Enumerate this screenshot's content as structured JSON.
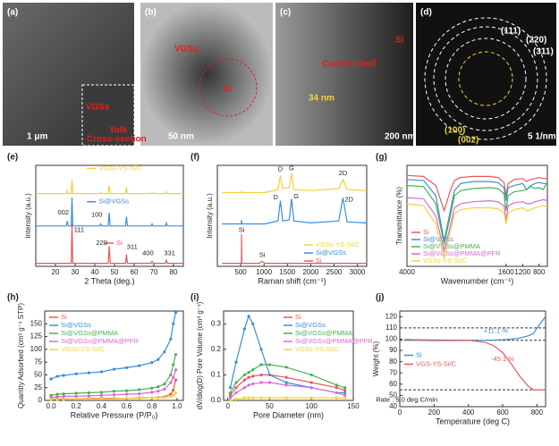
{
  "panels": [
    {
      "label": "(a)",
      "texts": [
        "VGSs",
        "Yolk",
        "Cross-section",
        "1 μm"
      ]
    },
    {
      "label": "(b)",
      "texts": [
        "VGSs",
        "Si",
        "50 nm"
      ]
    },
    {
      "label": "(c)",
      "texts": [
        "Carbon shell",
        "Si",
        "34 nm",
        "200 nm"
      ]
    },
    {
      "label": "(d)",
      "texts": [
        "(111)",
        "(220)",
        "(311)",
        "(100)",
        "(002)",
        "5 1/nm"
      ]
    }
  ],
  "chart_data": [
    {
      "type": "line",
      "panel_label": "(e)",
      "x_label": "2 Theta (deg.)",
      "y_label": "Intensity (a.u.)",
      "legend": "inline",
      "xlim": [
        10,
        85
      ],
      "ylim": [
        0,
        10
      ],
      "xticks": [
        20,
        30,
        40,
        50,
        60,
        70,
        80
      ],
      "x": [
        10,
        20,
        25.5,
        26,
        26.5,
        28,
        28.4,
        28.8,
        35,
        42.5,
        43,
        43.5,
        46.8,
        47.3,
        47.8,
        55.6,
        56.1,
        56.6,
        68.6,
        69.1,
        69.6,
        75.9,
        76.4,
        76.9,
        85
      ],
      "series": [
        {
          "name": "VGSs-YS-Si/C",
          "color": "#f2d23c",
          "values": [
            7.2,
            7.2,
            7.2,
            7.5,
            7.2,
            7.2,
            8.6,
            7.2,
            7.2,
            7.2,
            7.3,
            7.2,
            7.2,
            8.0,
            7.2,
            7.2,
            7.8,
            7.2,
            7.2,
            7.3,
            7.2,
            7.2,
            7.4,
            7.2,
            7.2
          ]
        },
        {
          "name": "Si@VGSs",
          "color": "#3a8fd6",
          "values": [
            4.0,
            4.0,
            4.0,
            4.5,
            4.0,
            4.0,
            6.8,
            4.0,
            4.0,
            4.0,
            4.2,
            4.0,
            4.0,
            5.3,
            4.0,
            4.0,
            4.9,
            4.0,
            4.0,
            4.2,
            4.0,
            4.0,
            4.3,
            4.0,
            4.0
          ]
        },
        {
          "name": "Si",
          "color": "#e8585a",
          "values": [
            0.3,
            0.3,
            0.3,
            0.3,
            0.3,
            0.3,
            4.2,
            0.3,
            0.3,
            0.3,
            0.3,
            0.3,
            0.3,
            2.0,
            0.3,
            0.3,
            1.2,
            0.3,
            0.3,
            0.5,
            0.3,
            0.3,
            0.6,
            0.3,
            0.3
          ]
        }
      ],
      "annotations": [
        "002",
        "100",
        "111",
        "220",
        "311",
        "400",
        "331"
      ]
    },
    {
      "type": "line",
      "panel_label": "(f)",
      "x_label": "Raman shift (cm⁻¹)",
      "y_label": "Intensity (a.u.)",
      "legend": "lower right",
      "xlim": [
        0,
        3200
      ],
      "ylim": [
        0,
        10
      ],
      "xticks": [
        500,
        1000,
        1500,
        2000,
        2500,
        3000
      ],
      "x": [
        100,
        500,
        515,
        520,
        525,
        900,
        960,
        1020,
        1300,
        1350,
        1400,
        1540,
        1590,
        1640,
        2000,
        2600,
        2690,
        2780,
        3200
      ],
      "series": [
        {
          "name": "VGSs-YS-Si/C",
          "color": "#f2d23c",
          "values": [
            7.3,
            7.3,
            7.3,
            7.5,
            7.3,
            7.3,
            7.3,
            7.3,
            7.6,
            9.0,
            7.7,
            7.8,
            9.2,
            7.6,
            7.5,
            7.7,
            8.6,
            7.6,
            7.5
          ]
        },
        {
          "name": "Si@VGSs",
          "color": "#3a8fd6",
          "values": [
            4.2,
            4.2,
            4.2,
            4.6,
            4.2,
            4.2,
            4.2,
            4.2,
            4.5,
            6.5,
            4.5,
            4.6,
            6.7,
            4.5,
            4.3,
            4.5,
            6.8,
            4.4,
            4.3
          ]
        },
        {
          "name": "Si",
          "color": "#e8585a",
          "values": [
            0.3,
            0.3,
            0.3,
            3.2,
            0.3,
            0.3,
            0.5,
            0.3,
            0.3,
            0.3,
            0.3,
            0.3,
            0.3,
            0.3,
            0.3,
            0.3,
            0.3,
            0.3,
            0.3
          ]
        }
      ],
      "annotations": [
        "D",
        "G",
        "2D",
        "D",
        "G",
        "2D",
        "Si",
        "Si"
      ]
    },
    {
      "type": "line",
      "panel_label": "(g)",
      "x_label": "Wavenumber (cm⁻¹)",
      "y_label": "Transmittance (%)",
      "legend": "lower left",
      "xlim": [
        4000,
        600
      ],
      "ylim": [
        0,
        10
      ],
      "xticks": [
        4000,
        1600,
        1200,
        800
      ],
      "x": [
        4000,
        3600,
        3300,
        3100,
        2950,
        2850,
        2700,
        2400,
        2000,
        1800,
        1650,
        1600,
        1550,
        1400,
        1200,
        1100,
        1000,
        900,
        800,
        700,
        600
      ],
      "series": [
        {
          "name": "Si",
          "color": "#e8585a",
          "values": [
            9.0,
            8.9,
            8.0,
            5.5,
            7.5,
            8.5,
            8.8,
            8.9,
            8.9,
            8.8,
            8.3,
            7.0,
            8.2,
            8.6,
            8.7,
            8.4,
            8.6,
            8.7,
            8.8,
            8.7,
            8.7
          ]
        },
        {
          "name": "Si@VGSs",
          "color": "#3a8fd6",
          "values": [
            8.6,
            8.5,
            7.0,
            2.5,
            5.5,
            7.5,
            8.2,
            8.4,
            8.4,
            8.3,
            7.8,
            6.5,
            7.8,
            8.0,
            8.2,
            7.6,
            8.0,
            8.2,
            8.3,
            8.2,
            8.2
          ]
        },
        {
          "name": "Si@VGSs@PMMA",
          "color": "#4caf50",
          "values": [
            8.0,
            7.9,
            6.2,
            2.2,
            5.0,
            7.0,
            7.5,
            7.7,
            7.8,
            7.7,
            7.2,
            5.5,
            7.0,
            7.4,
            7.5,
            7.6,
            7.9,
            7.7,
            7.8,
            7.6,
            8.4
          ]
        },
        {
          "name": "Si@VGSs@PMMA@PFR",
          "color": "#d46ad4",
          "values": [
            6.8,
            6.7,
            5.0,
            1.5,
            4.0,
            5.8,
            6.2,
            6.4,
            6.5,
            6.4,
            6.0,
            4.5,
            6.0,
            6.3,
            6.4,
            6.2,
            6.2,
            6.4,
            6.5,
            6.6,
            6.5
          ]
        },
        {
          "name": "VGSs-YS-Si/C",
          "color": "#f2d23c",
          "values": [
            6.2,
            6.0,
            4.2,
            0.8,
            3.4,
            5.2,
            5.6,
            5.8,
            5.8,
            5.7,
            5.3,
            4.2,
            5.3,
            5.6,
            5.8,
            5.5,
            5.6,
            5.8,
            5.9,
            6.0,
            5.9
          ]
        }
      ]
    },
    {
      "type": "line",
      "panel_label": "(h)",
      "x_label": "Relative Pressure (P/P₀)",
      "y_label": "Quantity Adsorbed (cm³ g⁻¹ STP)",
      "legend": "upper left",
      "markers": true,
      "xlim": [
        -0.05,
        1.05
      ],
      "ylim": [
        0,
        175
      ],
      "xticks": [
        {
          "value": 0,
          "label": "0.0"
        },
        0.2,
        0.4,
        0.6,
        0.8,
        {
          "value": 1,
          "label": "1.0"
        }
      ],
      "yticks": [
        0,
        25,
        50,
        75,
        100,
        125,
        150
      ],
      "x": [
        0.0,
        0.05,
        0.1,
        0.2,
        0.3,
        0.4,
        0.5,
        0.6,
        0.7,
        0.8,
        0.85,
        0.9,
        0.95,
        0.97,
        0.99
      ],
      "series": [
        {
          "name": "Si",
          "color": "#e8585a",
          "values": [
            3,
            3,
            3,
            3,
            4,
            4,
            4,
            4,
            5,
            5,
            6,
            7,
            12,
            20,
            40
          ]
        },
        {
          "name": "Si@VGSs",
          "color": "#3a8fd6",
          "values": [
            42,
            47,
            49,
            52,
            54,
            56,
            61,
            64,
            68,
            74,
            80,
            95,
            120,
            150,
            172
          ]
        },
        {
          "name": "Si@VGSs@PMMA",
          "color": "#4caf50",
          "values": [
            10,
            12,
            13,
            14,
            15,
            16,
            18,
            19,
            21,
            24,
            27,
            32,
            50,
            70,
            90
          ]
        },
        {
          "name": "Si@VGSs@PMMA@PFR",
          "color": "#d46ad4",
          "values": [
            6,
            7,
            8,
            8,
            9,
            10,
            11,
            12,
            13,
            16,
            18,
            22,
            35,
            45,
            60
          ]
        },
        {
          "name": "VGSs-YS-Si/C",
          "color": "#f2d23c",
          "values": [
            2,
            2,
            2,
            3,
            3,
            3,
            3,
            4,
            4,
            5,
            5,
            6,
            8,
            10,
            15
          ]
        }
      ]
    },
    {
      "type": "line",
      "panel_label": "(i)",
      "x_label": "Pore Diameter (nm)",
      "y_label": "dV/dlog(D) Pore Volume (cm³ g⁻¹)",
      "legend": "upper right",
      "markers": true,
      "xlim": [
        -5,
        150
      ],
      "ylim": [
        0,
        0.35
      ],
      "xticks": [
        0,
        50,
        100,
        150
      ],
      "yticks": [
        {
          "value": 0,
          "label": "0.0"
        },
        0.1,
        0.2,
        0.3
      ],
      "x": [
        3,
        10,
        20,
        25,
        30,
        40,
        50,
        70,
        100,
        130,
        140
      ],
      "series": [
        {
          "name": "Si",
          "color": "#e8585a",
          "values": [
            0.02,
            0.05,
            0.08,
            0.09,
            0.095,
            0.1,
            0.1,
            0.09,
            0.07,
            0.05,
            0.04
          ]
        },
        {
          "name": "Si@VGSs",
          "color": "#3a8fd6",
          "values": [
            0.05,
            0.15,
            0.28,
            0.33,
            0.3,
            0.2,
            0.1,
            0.07,
            0.05,
            0.03,
            0.03
          ]
        },
        {
          "name": "Si@VGSs@PMMA",
          "color": "#4caf50",
          "values": [
            0.03,
            0.07,
            0.1,
            0.11,
            0.12,
            0.14,
            0.14,
            0.13,
            0.1,
            0.06,
            0.05
          ]
        },
        {
          "name": "Si@VGSs@PMMA@PFR",
          "color": "#d46ad4",
          "values": [
            0.01,
            0.03,
            0.05,
            0.06,
            0.065,
            0.07,
            0.07,
            0.06,
            0.05,
            0.03,
            0.02
          ]
        },
        {
          "name": "VGSs-YS-Si/C",
          "color": "#f2d23c",
          "values": [
            0.0,
            0.005,
            0.01,
            0.01,
            0.01,
            0.01,
            0.01,
            0.01,
            0.01,
            0.01,
            0.01
          ]
        }
      ]
    },
    {
      "type": "line",
      "panel_label": "(j)",
      "x_label": "Temperature (deg C)",
      "y_label": "Weight (%)",
      "legend": "center left",
      "xlim": [
        0,
        850
      ],
      "ylim": [
        40,
        125
      ],
      "xticks": [
        0,
        200,
        400,
        600,
        800
      ],
      "yticks": [
        40,
        50,
        60,
        70,
        80,
        90,
        100,
        110,
        120
      ],
      "ref_lines": [
        110,
        99,
        55
      ],
      "x": [
        30,
        100,
        200,
        300,
        400,
        500,
        550,
        600,
        650,
        700,
        750,
        780,
        800,
        850
      ],
      "series": [
        {
          "name": "Si",
          "color": "#3a8fd6",
          "values": [
            99,
            99,
            98.8,
            98.8,
            98.9,
            99,
            99.2,
            99.5,
            100,
            101,
            103,
            105,
            110,
            120
          ]
        },
        {
          "name": "VGS-YS-Si/C",
          "color": "#e8585a",
          "values": [
            99.8,
            99.5,
            99.3,
            99.2,
            99,
            97,
            94,
            88,
            78,
            67,
            58,
            55,
            55,
            55
          ]
        }
      ],
      "annotations": [
        "+11.1 %",
        "-45.1 %",
        "Rate : 5.0 deg C/min"
      ]
    }
  ]
}
